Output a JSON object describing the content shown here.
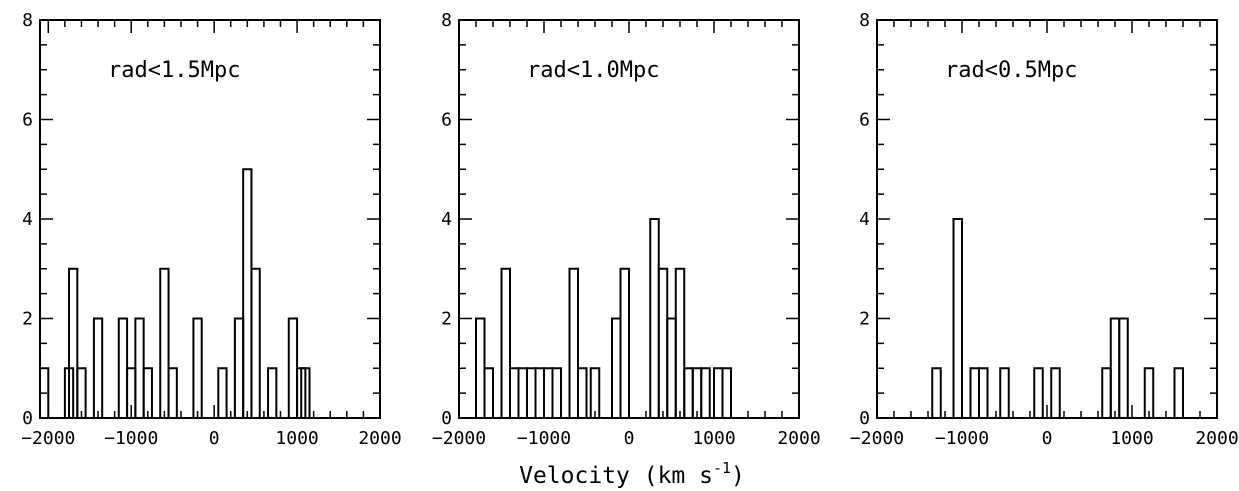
{
  "chart_data": [
    {
      "type": "bar",
      "annotation": "rad<1.5Mpc",
      "xlim": [
        -2100,
        2000
      ],
      "ylim": [
        0,
        8
      ],
      "xticks": [
        -2000,
        -1000,
        0,
        1000,
        2000
      ],
      "yticks": [
        0,
        2,
        4,
        6,
        8
      ],
      "bin_width": 100,
      "bins": [
        {
          "x": -2100,
          "count": 1
        },
        {
          "x": -1800,
          "count": 1
        },
        {
          "x": -1750,
          "count": 3
        },
        {
          "x": -1650,
          "count": 1
        },
        {
          "x": -1450,
          "count": 2
        },
        {
          "x": -1250,
          "count": 0
        },
        {
          "x": -1150,
          "count": 2
        },
        {
          "x": -1050,
          "count": 1
        },
        {
          "x": -950,
          "count": 2
        },
        {
          "x": -850,
          "count": 1
        },
        {
          "x": -650,
          "count": 3
        },
        {
          "x": -550,
          "count": 1
        },
        {
          "x": -250,
          "count": 2
        },
        {
          "x": 50,
          "count": 1
        },
        {
          "x": 250,
          "count": 2
        },
        {
          "x": 350,
          "count": 5
        },
        {
          "x": 450,
          "count": 3
        },
        {
          "x": 650,
          "count": 1
        },
        {
          "x": 900,
          "count": 2
        },
        {
          "x": 1000,
          "count": 1
        },
        {
          "x": 1050,
          "count": 1
        }
      ]
    },
    {
      "type": "bar",
      "annotation": "rad<1.0Mpc",
      "xlim": [
        -2000,
        2000
      ],
      "ylim": [
        0,
        8
      ],
      "xticks": [
        -2000,
        -1000,
        0,
        1000,
        2000
      ],
      "yticks": [
        0,
        2,
        4,
        6,
        8
      ],
      "bin_width": 100,
      "bins": [
        {
          "x": -1800,
          "count": 2
        },
        {
          "x": -1700,
          "count": 1
        },
        {
          "x": -1500,
          "count": 3
        },
        {
          "x": -1400,
          "count": 1
        },
        {
          "x": -1300,
          "count": 1
        },
        {
          "x": -1200,
          "count": 1
        },
        {
          "x": -1100,
          "count": 1
        },
        {
          "x": -1000,
          "count": 1
        },
        {
          "x": -900,
          "count": 1
        },
        {
          "x": -700,
          "count": 3
        },
        {
          "x": -600,
          "count": 1
        },
        {
          "x": -450,
          "count": 1
        },
        {
          "x": -200,
          "count": 2
        },
        {
          "x": -100,
          "count": 3
        },
        {
          "x": 250,
          "count": 4
        },
        {
          "x": 350,
          "count": 3
        },
        {
          "x": 450,
          "count": 2
        },
        {
          "x": 550,
          "count": 3
        },
        {
          "x": 650,
          "count": 1
        },
        {
          "x": 750,
          "count": 1
        },
        {
          "x": 850,
          "count": 1
        },
        {
          "x": 1000,
          "count": 1
        },
        {
          "x": 1100,
          "count": 1
        }
      ]
    },
    {
      "type": "bar",
      "annotation": "rad<0.5Mpc",
      "xlim": [
        -2000,
        2000
      ],
      "ylim": [
        0,
        8
      ],
      "xticks": [
        -2000,
        -1000,
        0,
        1000,
        2000
      ],
      "yticks": [
        0,
        2,
        4,
        6,
        8
      ],
      "bin_width": 100,
      "bins": [
        {
          "x": -1350,
          "count": 1
        },
        {
          "x": -1100,
          "count": 4
        },
        {
          "x": -900,
          "count": 1
        },
        {
          "x": -800,
          "count": 1
        },
        {
          "x": -550,
          "count": 1
        },
        {
          "x": -150,
          "count": 1
        },
        {
          "x": 50,
          "count": 1
        },
        {
          "x": 650,
          "count": 1
        },
        {
          "x": 750,
          "count": 2
        },
        {
          "x": 850,
          "count": 2
        },
        {
          "x": 1150,
          "count": 1
        },
        {
          "x": 1500,
          "count": 1
        }
      ]
    }
  ],
  "xlabel_main": "Velocity (km s",
  "xlabel_sup": "-1",
  "xlabel_close": ")"
}
